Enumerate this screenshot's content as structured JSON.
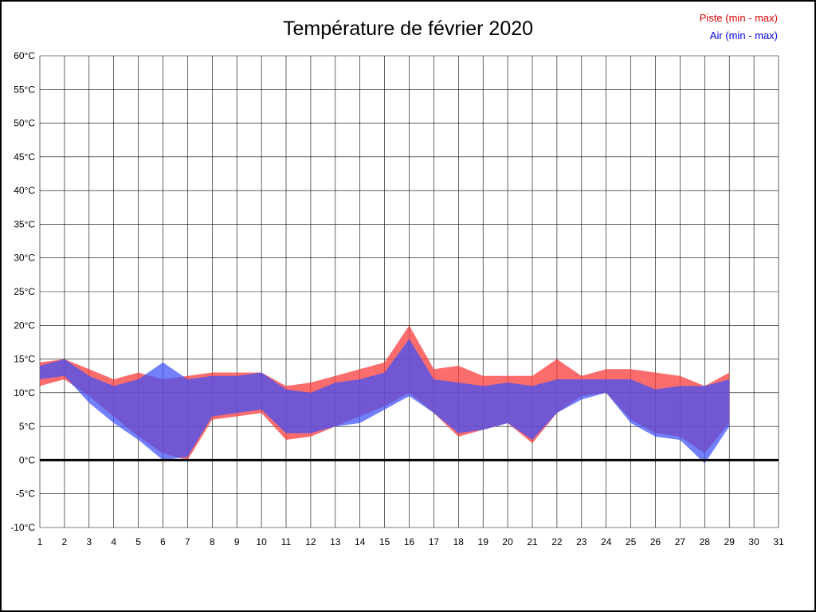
{
  "title": "Température de février 2020",
  "legend": {
    "piste_label": "Piste (min - max)",
    "air_label": "Air (min - max)",
    "piste_color": "#dd0000",
    "air_color": "#0000dd"
  },
  "chart_data": {
    "type": "area",
    "title": "Température de février 2020",
    "xlabel": "",
    "ylabel": "°C",
    "xlim": [
      1,
      31
    ],
    "ylim": [
      -10,
      60
    ],
    "grid": true,
    "zero_line": true,
    "legend_position": "top-right",
    "x_ticks": [
      1,
      2,
      3,
      4,
      5,
      6,
      7,
      8,
      9,
      10,
      11,
      12,
      13,
      14,
      15,
      16,
      17,
      18,
      19,
      20,
      21,
      22,
      23,
      24,
      25,
      26,
      27,
      28,
      29,
      30,
      31
    ],
    "y_ticks": [
      -10,
      -5,
      0,
      5,
      10,
      15,
      20,
      25,
      30,
      35,
      40,
      45,
      50,
      55,
      60
    ],
    "y_tick_suffix": "°C",
    "x": [
      1,
      2,
      3,
      4,
      5,
      6,
      7,
      8,
      9,
      10,
      11,
      12,
      13,
      14,
      15,
      16,
      17,
      18,
      19,
      20,
      21,
      22,
      23,
      24,
      25,
      26,
      27,
      28,
      29
    ],
    "series": [
      {
        "name": "Piste",
        "kind": "min-max-band",
        "color": "rgba(250,60,60,0.75)",
        "min": [
          11,
          12,
          9.5,
          6.5,
          3.5,
          1,
          0,
          6,
          6.5,
          7,
          3,
          3.5,
          5,
          6.5,
          8,
          10,
          7,
          3.5,
          4.5,
          5.5,
          2.5,
          7,
          9.5,
          10,
          6,
          4,
          3.5,
          1,
          5.5
        ],
        "max": [
          14.5,
          15,
          13.5,
          12,
          13,
          12,
          12.5,
          13,
          13,
          13,
          11,
          11.5,
          12.5,
          13.5,
          14.5,
          20,
          13.5,
          14,
          12.5,
          12.5,
          12.5,
          15,
          12.5,
          13.5,
          13.5,
          13,
          12.5,
          11,
          13
        ]
      },
      {
        "name": "Air",
        "kind": "min-max-band",
        "color": "rgba(60,80,250,0.72)",
        "min": [
          12,
          12.5,
          8.5,
          5.5,
          3,
          0,
          0.5,
          6.5,
          7,
          7.5,
          4,
          4,
          5,
          5.5,
          7.5,
          9.5,
          7,
          4,
          4.5,
          5.5,
          3,
          7,
          9,
          10,
          5.5,
          3.5,
          3,
          -0.5,
          5
        ],
        "max": [
          14,
          15,
          12.5,
          11,
          12,
          14.5,
          12,
          12.5,
          12.5,
          13,
          10.5,
          10,
          11.5,
          12,
          13,
          18,
          12,
          11.5,
          11,
          11.5,
          11,
          12,
          12,
          12,
          12,
          10.5,
          11,
          11,
          12
        ]
      }
    ]
  }
}
